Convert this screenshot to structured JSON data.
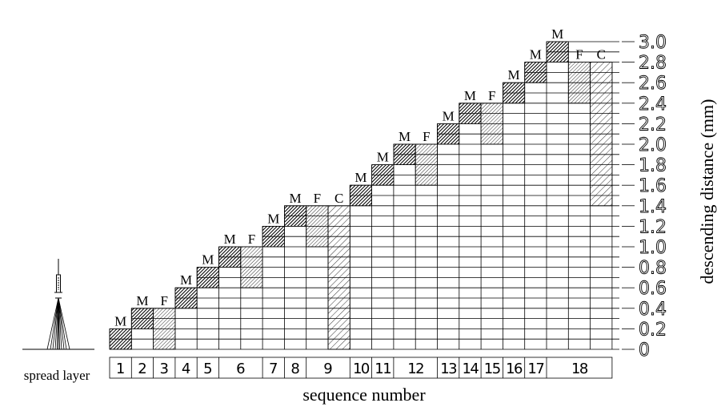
{
  "labels": {
    "y_axis": "descending distance (mm)",
    "x_axis": "sequence number",
    "left_label": "spread layer"
  },
  "legend_letters": {
    "M": "M",
    "F": "F",
    "C": "C"
  },
  "y_ticks": [
    "0",
    "0.2",
    "0.4",
    "0.6",
    "0.8",
    "1.0",
    "1.2",
    "1.4",
    "1.6",
    "1.8",
    "2.0",
    "2.2",
    "2.4",
    "2.6",
    "2.8",
    "3.0"
  ],
  "sequence_cells": [
    "1",
    "2",
    "3",
    "4",
    "5",
    "6",
    "7",
    "8",
    "9",
    "10",
    "11",
    "12",
    "13",
    "14",
    "15",
    "16",
    "17",
    "18"
  ],
  "diagram": {
    "step_mm": 0.2,
    "n_columns": 23,
    "max_distance_mm": 3.0,
    "column_to_sequence": [
      1,
      2,
      3,
      4,
      5,
      6,
      6,
      7,
      8,
      9,
      9,
      10,
      11,
      12,
      12,
      13,
      14,
      15,
      16,
      17,
      18,
      18,
      18
    ],
    "blocks": [
      {
        "col": 1,
        "type": "M",
        "bottom_mm": 0.0,
        "top_mm": 0.2,
        "label": "M"
      },
      {
        "col": 2,
        "type": "M",
        "bottom_mm": 0.2,
        "top_mm": 0.4,
        "label": "M"
      },
      {
        "col": 3,
        "type": "F",
        "bottom_mm": 0.0,
        "top_mm": 0.4,
        "label": "F"
      },
      {
        "col": 4,
        "type": "M",
        "bottom_mm": 0.4,
        "top_mm": 0.6,
        "label": "M"
      },
      {
        "col": 5,
        "type": "M",
        "bottom_mm": 0.6,
        "top_mm": 0.8,
        "label": "M"
      },
      {
        "col": 6,
        "type": "M",
        "bottom_mm": 0.8,
        "top_mm": 1.0,
        "label": "M"
      },
      {
        "col": 7,
        "type": "F",
        "bottom_mm": 0.6,
        "top_mm": 1.0,
        "label": "F"
      },
      {
        "col": 8,
        "type": "M",
        "bottom_mm": 1.0,
        "top_mm": 1.2,
        "label": "M"
      },
      {
        "col": 9,
        "type": "M",
        "bottom_mm": 1.2,
        "top_mm": 1.4,
        "label": "M"
      },
      {
        "col": 10,
        "type": "F",
        "bottom_mm": 1.0,
        "top_mm": 1.4,
        "label": "F"
      },
      {
        "col": 11,
        "type": "C",
        "bottom_mm": 0.0,
        "top_mm": 1.4,
        "label": "C"
      },
      {
        "col": 12,
        "type": "M",
        "bottom_mm": 1.4,
        "top_mm": 1.6,
        "label": "M"
      },
      {
        "col": 13,
        "type": "M",
        "bottom_mm": 1.6,
        "top_mm": 1.8,
        "label": "M"
      },
      {
        "col": 14,
        "type": "M",
        "bottom_mm": 1.8,
        "top_mm": 2.0,
        "label": "M"
      },
      {
        "col": 15,
        "type": "F",
        "bottom_mm": 1.6,
        "top_mm": 2.0,
        "label": "F"
      },
      {
        "col": 16,
        "type": "M",
        "bottom_mm": 2.0,
        "top_mm": 2.2,
        "label": "M"
      },
      {
        "col": 17,
        "type": "M",
        "bottom_mm": 2.2,
        "top_mm": 2.4,
        "label": "M"
      },
      {
        "col": 18,
        "type": "F",
        "bottom_mm": 2.0,
        "top_mm": 2.4,
        "label": "F"
      },
      {
        "col": 19,
        "type": "M",
        "bottom_mm": 2.4,
        "top_mm": 2.6,
        "label": "M"
      },
      {
        "col": 20,
        "type": "M",
        "bottom_mm": 2.6,
        "top_mm": 2.8,
        "label": "M"
      },
      {
        "col": 21,
        "type": "M",
        "bottom_mm": 2.8,
        "top_mm": 3.0,
        "label": "M"
      },
      {
        "col": 22,
        "type": "F",
        "bottom_mm": 2.4,
        "top_mm": 2.8,
        "label": "F"
      },
      {
        "col": 23,
        "type": "C",
        "bottom_mm": 1.4,
        "top_mm": 2.8,
        "label": "C"
      }
    ]
  }
}
